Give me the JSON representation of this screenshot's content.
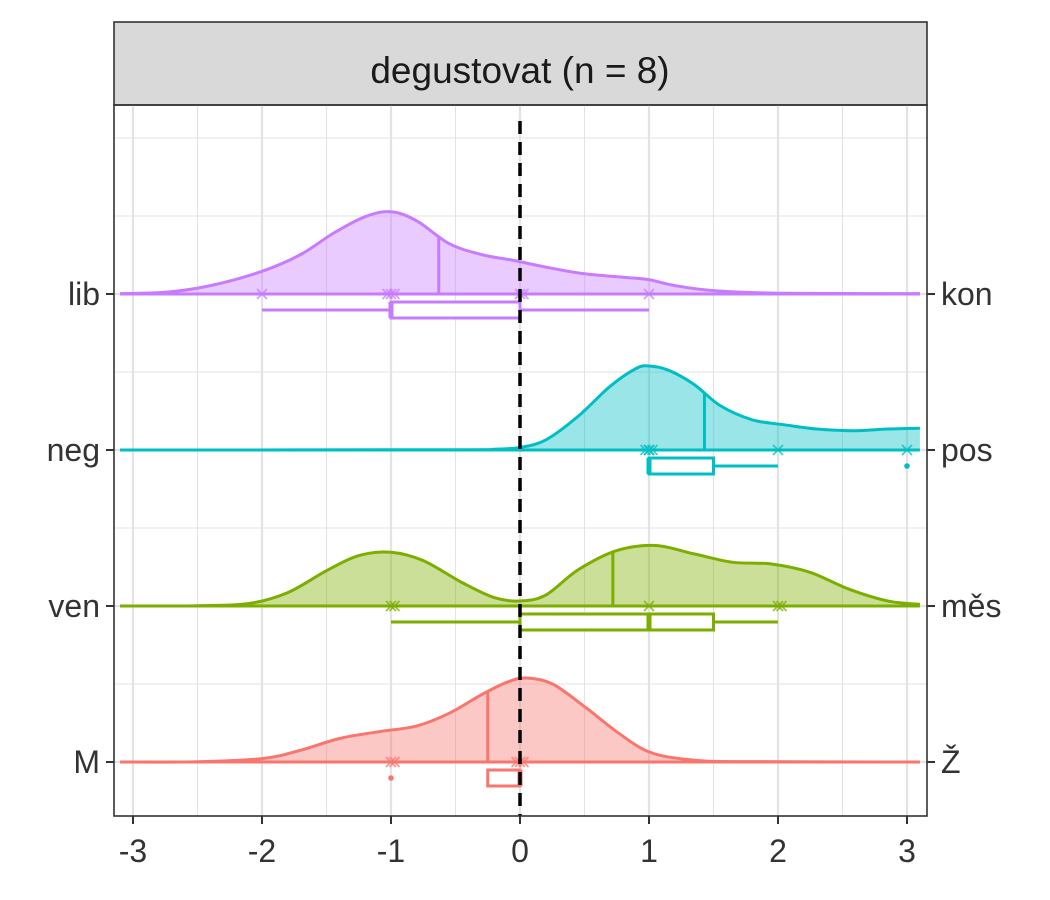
{
  "chart_data": {
    "type": "ridgeline",
    "panel_title": "degustovat (n = 8)",
    "x_ticks": [
      -3,
      -2,
      -1,
      0,
      1,
      2,
      3
    ],
    "xlim": [
      -3.1,
      3.1
    ],
    "reference_line_x": 0,
    "grid": true,
    "rows": [
      {
        "left": "lib",
        "right": "kon",
        "color": "#C77CFF",
        "points": [
          -2,
          -1,
          -1,
          -1,
          0,
          0,
          1
        ],
        "mean": -0.63,
        "box": {
          "whisker_low": -2,
          "q1": -1,
          "median": -1,
          "q3": 0,
          "whisker_high": 1
        },
        "outliers": [],
        "density": [
          [
            -3.1,
            0.005
          ],
          [
            -2.75,
            0.02
          ],
          [
            -2.4,
            0.1
          ],
          [
            -2.0,
            0.27
          ],
          [
            -1.7,
            0.47
          ],
          [
            -1.45,
            0.72
          ],
          [
            -1.2,
            0.92
          ],
          [
            -1.0,
            0.98
          ],
          [
            -0.8,
            0.87
          ],
          [
            -0.55,
            0.6
          ],
          [
            -0.3,
            0.47
          ],
          [
            -0.05,
            0.4
          ],
          [
            0.2,
            0.32
          ],
          [
            0.5,
            0.24
          ],
          [
            0.8,
            0.2
          ],
          [
            1.0,
            0.17
          ],
          [
            1.2,
            0.1
          ],
          [
            1.5,
            0.04
          ],
          [
            2.0,
            0.01
          ],
          [
            3.1,
            0.005
          ]
        ]
      },
      {
        "left": "neg",
        "right": "pos",
        "color": "#00BFC4",
        "points": [
          1,
          1,
          1,
          1,
          2,
          3
        ],
        "mean": 1.43,
        "box": {
          "whisker_low": 1,
          "q1": 1,
          "median": 1,
          "q3": 1.5,
          "whisker_high": 2
        },
        "outliers": [
          3
        ],
        "density": [
          [
            -3.1,
            0
          ],
          [
            -0.5,
            0.003
          ],
          [
            -0.2,
            0.01
          ],
          [
            0.0,
            0.03
          ],
          [
            0.2,
            0.12
          ],
          [
            0.45,
            0.4
          ],
          [
            0.7,
            0.76
          ],
          [
            0.9,
            0.97
          ],
          [
            1.0,
            1.0
          ],
          [
            1.15,
            0.95
          ],
          [
            1.35,
            0.78
          ],
          [
            1.55,
            0.53
          ],
          [
            1.8,
            0.36
          ],
          [
            2.05,
            0.3
          ],
          [
            2.3,
            0.25
          ],
          [
            2.6,
            0.23
          ],
          [
            2.85,
            0.25
          ],
          [
            3.1,
            0.26
          ]
        ]
      },
      {
        "left": "ven",
        "right": "měs",
        "color": "#7CAE00",
        "points": [
          -1,
          -1,
          1,
          2,
          2
        ],
        "mean": 0.72,
        "box": {
          "whisker_low": -1,
          "q1": 0,
          "median": 1,
          "q3": 1.5,
          "whisker_high": 2
        },
        "outliers": [],
        "density": [
          [
            -3.1,
            0
          ],
          [
            -2.5,
            0.003
          ],
          [
            -2.1,
            0.03
          ],
          [
            -1.8,
            0.16
          ],
          [
            -1.5,
            0.42
          ],
          [
            -1.25,
            0.6
          ],
          [
            -1.0,
            0.64
          ],
          [
            -0.75,
            0.54
          ],
          [
            -0.45,
            0.28
          ],
          [
            -0.2,
            0.1
          ],
          [
            0.0,
            0.06
          ],
          [
            0.2,
            0.13
          ],
          [
            0.45,
            0.43
          ],
          [
            0.75,
            0.66
          ],
          [
            1.05,
            0.72
          ],
          [
            1.35,
            0.62
          ],
          [
            1.65,
            0.52
          ],
          [
            1.95,
            0.5
          ],
          [
            2.25,
            0.4
          ],
          [
            2.55,
            0.2
          ],
          [
            2.85,
            0.06
          ],
          [
            3.1,
            0.02
          ]
        ]
      },
      {
        "left": "M",
        "right": "Ž",
        "color": "#F8766D",
        "points": [
          -1,
          -1,
          0,
          0,
          0
        ],
        "mean": -0.25,
        "box": {
          "whisker_low": -0.25,
          "q1": -0.25,
          "median": 0,
          "q3": 0,
          "whisker_high": 0
        },
        "outliers": [
          -1
        ],
        "density": [
          [
            -3.1,
            0
          ],
          [
            -2.5,
            0.003
          ],
          [
            -2.0,
            0.04
          ],
          [
            -1.7,
            0.14
          ],
          [
            -1.4,
            0.28
          ],
          [
            -1.1,
            0.36
          ],
          [
            -0.8,
            0.43
          ],
          [
            -0.55,
            0.58
          ],
          [
            -0.3,
            0.8
          ],
          [
            -0.1,
            0.95
          ],
          [
            0.05,
            1.0
          ],
          [
            0.25,
            0.93
          ],
          [
            0.5,
            0.66
          ],
          [
            0.75,
            0.36
          ],
          [
            1.0,
            0.12
          ],
          [
            1.3,
            0.03
          ],
          [
            1.7,
            0.005
          ],
          [
            3.1,
            0
          ]
        ]
      }
    ]
  }
}
